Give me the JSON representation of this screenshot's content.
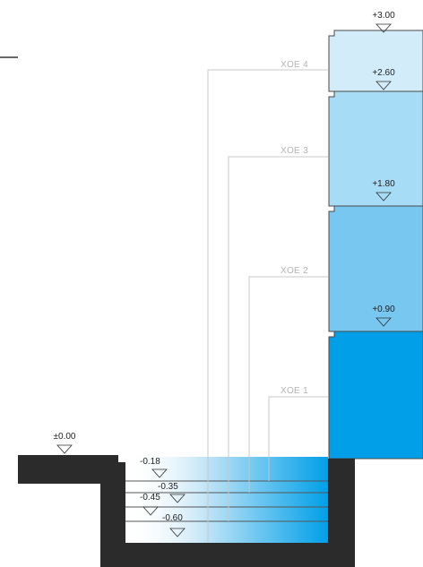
{
  "levels": {
    "top": "+3.00",
    "l4": "+2.60",
    "l3": "+1.80",
    "l2": "+0.90",
    "ground": "±0.00",
    "s1": "-0.18",
    "s2": "-0.35",
    "s3": "-0.45",
    "s4": "-0.60"
  },
  "stages": {
    "xoe1": "XOE 1",
    "xoe2": "XOE 2",
    "xoe3": "XOE 3",
    "xoe4": "XOE 4"
  },
  "colors": {
    "stage1": "#009fe8",
    "stage2": "#78c7f0",
    "stage3": "#a6dcf6",
    "stage4": "#d2ecfa",
    "wall": "#2b2b2b",
    "leader": "#c8c8c8",
    "text": "#222222"
  }
}
